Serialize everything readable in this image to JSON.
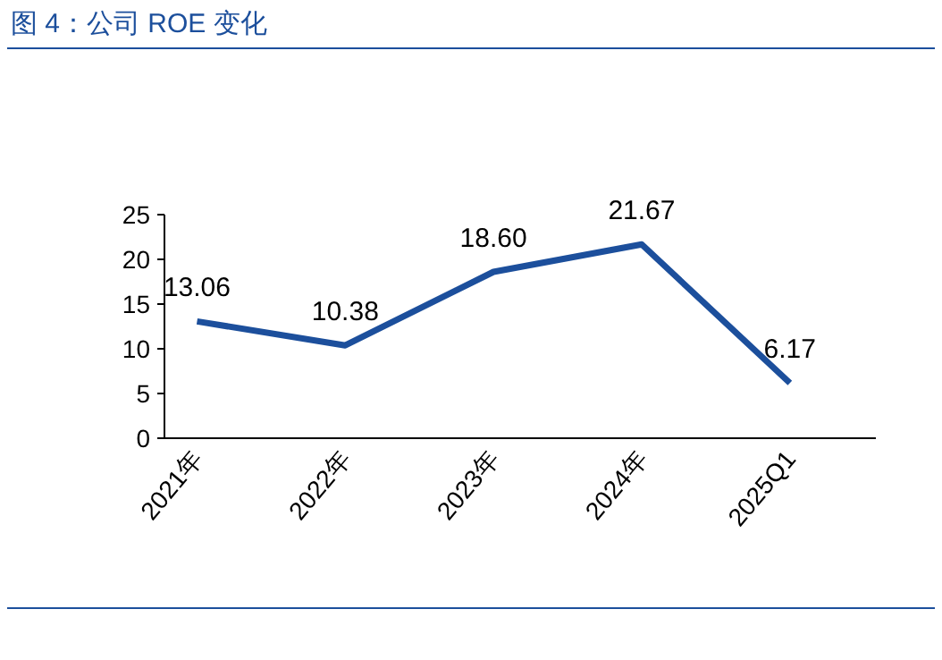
{
  "chart_data": {
    "type": "line",
    "title": "图 4：公司 ROE 变化",
    "categories": [
      "2021年",
      "2022年",
      "2023年",
      "2024年",
      "2025Q1"
    ],
    "values": [
      13.06,
      10.38,
      18.6,
      21.67,
      6.17
    ],
    "value_labels": [
      "13.06",
      "10.38",
      "18.60",
      "21.67",
      "6.17"
    ],
    "color": "#1c4f9c",
    "ylim": [
      0,
      25
    ],
    "yticks": [
      0,
      5,
      10,
      15,
      20,
      25
    ],
    "line_style": "solid"
  }
}
